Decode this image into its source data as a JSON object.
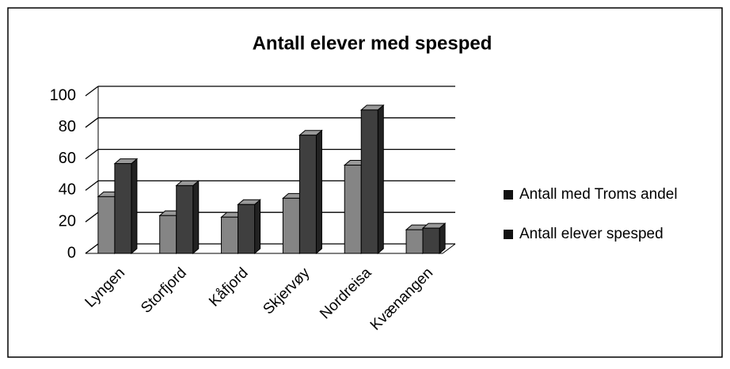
{
  "chart_data": {
    "type": "bar",
    "title": "Antall elever med spesped",
    "categories": [
      "Lyngen",
      "Storfjord",
      "Kåfjord",
      "Skjervøy",
      "Nordreisa",
      "Kvænangen"
    ],
    "series": [
      {
        "name": "Antall med Troms andel",
        "color": "#858585",
        "values": [
          36,
          24,
          23,
          35,
          56,
          15
        ]
      },
      {
        "name": "Antall elever spesped",
        "color": "#3f3f3f",
        "values": [
          57,
          43,
          31,
          75,
          91,
          16
        ]
      }
    ],
    "ylim": [
      0,
      100
    ],
    "yticks": [
      0,
      20,
      40,
      60,
      80,
      100
    ],
    "grid": true,
    "legend": "right"
  }
}
